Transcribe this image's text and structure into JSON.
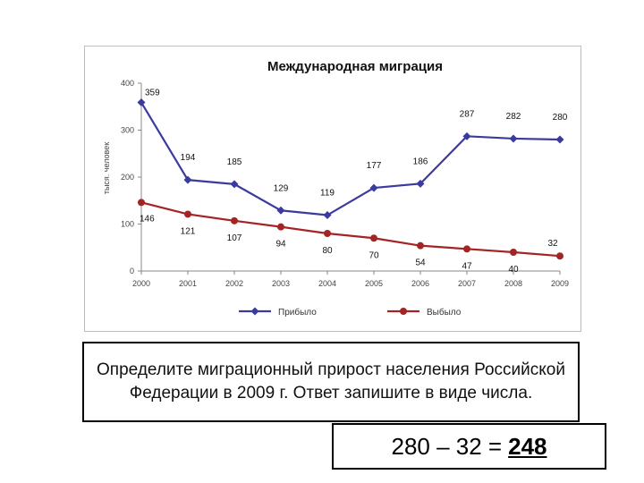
{
  "question": {
    "text": "Определите миграционный прирост населения Российской Федерации в 2009 г. Ответ запишите в виде числа."
  },
  "answer": {
    "expression": "280 – 32 =",
    "result": "248"
  },
  "chart_data": {
    "type": "line",
    "title": "Международная миграция",
    "ylabel": "тыся. человек",
    "xlabel": "",
    "categories": [
      "2000",
      "2001",
      "2002",
      "2003",
      "2004",
      "2005",
      "2006",
      "2007",
      "2008",
      "2009"
    ],
    "ylim": [
      0,
      400
    ],
    "yticks": [
      "0",
      "100",
      "200",
      "300",
      "400"
    ],
    "grid": false,
    "legend_position": "bottom",
    "series": [
      {
        "name": "Прибыло",
        "color": "#3b3b9f",
        "marker": "diamond",
        "values": [
          359,
          194,
          185,
          129,
          119,
          177,
          186,
          287,
          282,
          280
        ]
      },
      {
        "name": "Выбыло",
        "color": "#a42424",
        "marker": "circle",
        "values": [
          146,
          121,
          107,
          94,
          80,
          70,
          54,
          47,
          40,
          32
        ]
      }
    ]
  }
}
